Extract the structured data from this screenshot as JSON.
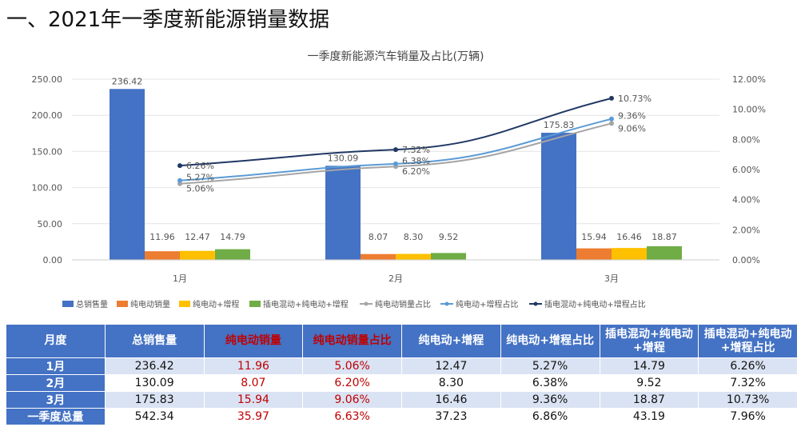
{
  "page_title": "一、2021年一季度新能源销量数据",
  "chart_data": {
    "type": "bar+line",
    "title": "一季度新能源汽车销量及占比(万辆)",
    "categories": [
      "1月",
      "2月",
      "3月"
    ],
    "y_left": {
      "range": [
        0,
        250
      ],
      "ticks": [
        "0.00",
        "50.00",
        "100.00",
        "150.00",
        "200.00",
        "250.00"
      ]
    },
    "y_right": {
      "range": [
        0,
        12
      ],
      "ticks": [
        "0.00%",
        "2.00%",
        "4.00%",
        "6.00%",
        "8.00%",
        "10.00%",
        "12.00%"
      ]
    },
    "bar_series": [
      {
        "name": "总销售量",
        "color": "#4472c4",
        "values": [
          236.42,
          130.09,
          175.83
        ]
      },
      {
        "name": "纯电动销量",
        "color": "#ed7d31",
        "values": [
          11.96,
          8.07,
          15.94
        ]
      },
      {
        "name": "纯电动+增程",
        "color": "#ffc000",
        "values": [
          12.47,
          8.3,
          16.46
        ]
      },
      {
        "name": "插电混动+纯电动+增程",
        "color": "#70ad47",
        "values": [
          14.79,
          9.52,
          18.87
        ]
      }
    ],
    "line_series": [
      {
        "name": "纯电动销量占比",
        "color": "#a5a5a5",
        "values": [
          5.06,
          6.2,
          9.06
        ]
      },
      {
        "name": "纯电动+增程占比",
        "color": "#5b9bd5",
        "values": [
          5.27,
          6.38,
          9.36
        ]
      },
      {
        "name": "插电混动+纯电动+增程占比",
        "color": "#203864",
        "values": [
          6.26,
          7.32,
          10.73
        ]
      }
    ],
    "legend": "bottom"
  },
  "table": {
    "headers": [
      "月度",
      "总销售量",
      "纯电动销量",
      "纯电动销量占比",
      "纯电动+增程",
      "纯电动+增程占比",
      "插电混动+纯电动+增程",
      "插电混动+纯电动+增程占比"
    ],
    "rows": [
      [
        "1月",
        "236.42",
        "11.96",
        "5.06%",
        "12.47",
        "5.27%",
        "14.79",
        "6.26%"
      ],
      [
        "2月",
        "130.09",
        "8.07",
        "6.20%",
        "8.30",
        "6.38%",
        "9.52",
        "7.32%"
      ],
      [
        "3月",
        "175.83",
        "15.94",
        "9.06%",
        "16.46",
        "9.36%",
        "18.87",
        "10.73%"
      ],
      [
        "一季度总量",
        "542.34",
        "35.97",
        "6.63%",
        "37.23",
        "6.86%",
        "43.19",
        "7.96%"
      ]
    ]
  }
}
